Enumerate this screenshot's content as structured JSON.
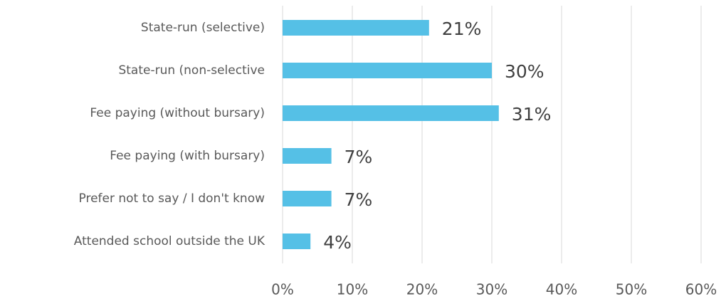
{
  "chart_data": {
    "type": "hbar",
    "categories": [
      "State-run (selective)",
      "State-run (non-selective",
      "Fee paying (without bursary)",
      "Fee paying (with bursary)",
      "Prefer not to say / I don't know",
      "Attended school outside the UK"
    ],
    "values": [
      21,
      30,
      31,
      7,
      7,
      4
    ],
    "value_labels": [
      "21%",
      "30%",
      "31%",
      "7%",
      "7%",
      "4%"
    ],
    "color": "#55c0e6",
    "xlim": [
      0,
      60
    ],
    "xticks": [
      {
        "value": 0,
        "label": "0%"
      },
      {
        "value": 10,
        "label": "10%"
      },
      {
        "value": 20,
        "label": "20%"
      },
      {
        "value": 30,
        "label": "30%"
      },
      {
        "value": 40,
        "label": "40%"
      },
      {
        "value": 50,
        "label": "50%"
      },
      {
        "value": 60,
        "label": "60%"
      }
    ],
    "grid": true
  }
}
